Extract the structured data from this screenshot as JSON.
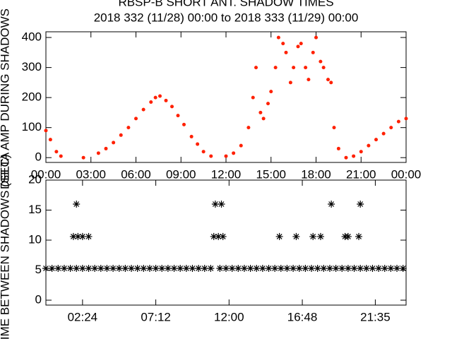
{
  "chart_data": [
    {
      "type": "scatter",
      "title": "RBSP-B SHORT ANT. SHADOW TIMES",
      "subtitle": "2018 332 (11/28) 00:00 to 2018 333 (11/29) 00:00",
      "y_label": "DELTA AMP DURING SHADOWS",
      "color": "#ff2000",
      "x": [
        0,
        0.3,
        0.7,
        1,
        2.5,
        3.5,
        4,
        4.5,
        5,
        5.5,
        6,
        6.5,
        7,
        7.3,
        7.6,
        8,
        8.4,
        8.8,
        9.2,
        9.7,
        10.1,
        10.5,
        11,
        12,
        12.5,
        13,
        13.5,
        13.8,
        14,
        14.3,
        14.5,
        14.8,
        15,
        15.3,
        15.5,
        15.8,
        16,
        16.3,
        16.5,
        16.8,
        17,
        17.3,
        17.5,
        17.8,
        18,
        18.3,
        18.5,
        18.8,
        19,
        19.2,
        19.5,
        20,
        20.5,
        21,
        21.5,
        22,
        22.5,
        23,
        23.5,
        24
      ],
      "values": [
        90,
        60,
        20,
        5,
        0,
        15,
        30,
        50,
        75,
        100,
        130,
        160,
        185,
        200,
        205,
        190,
        170,
        140,
        110,
        70,
        45,
        20,
        5,
        5,
        15,
        40,
        100,
        200,
        300,
        150,
        130,
        180,
        220,
        300,
        400,
        380,
        350,
        250,
        300,
        370,
        380,
        300,
        260,
        350,
        400,
        320,
        300,
        260,
        250,
        100,
        30,
        0,
        5,
        20,
        40,
        60,
        80,
        100,
        120,
        130
      ],
      "xlim": [
        0,
        24
      ],
      "ylim": [
        -16,
        419
      ],
      "xticks": [
        {
          "value": 0,
          "label": "00:00"
        },
        {
          "value": 3,
          "label": "03:00"
        },
        {
          "value": 6,
          "label": "06:00"
        },
        {
          "value": 9,
          "label": "09:00"
        },
        {
          "value": 12,
          "label": "12:00"
        },
        {
          "value": 15,
          "label": "15:00"
        },
        {
          "value": 18,
          "label": "18:00"
        },
        {
          "value": 21,
          "label": "21:00"
        },
        {
          "value": 24,
          "label": "00:00"
        }
      ],
      "yticks": [
        0,
        100,
        200,
        300,
        400
      ]
    },
    {
      "type": "asterisk",
      "y_label": "TIME BETWEEN SHADOWS (SEC)",
      "color": "#000000",
      "x": [
        0,
        0.4,
        0.8,
        1.2,
        1.6,
        2,
        2.4,
        2.8,
        3.2,
        3.6,
        4,
        4.4,
        4.8,
        5.2,
        5.6,
        6,
        6.4,
        6.8,
        7.2,
        7.6,
        8,
        8.4,
        8.8,
        9.2,
        9.6,
        10,
        10.4,
        10.8,
        11.4,
        11.8,
        12.2,
        12.6,
        13,
        13.4,
        13.8,
        14.2,
        14.6,
        15,
        15.4,
        15.8,
        16.2,
        16.6,
        17,
        17.4,
        17.8,
        18.2,
        18.6,
        19,
        19.4,
        19.8,
        20.2,
        20.6,
        21,
        21.4,
        21.8,
        22.2,
        22.6,
        23,
        23.4,
        1.8,
        2.1,
        2.4,
        2.8,
        11,
        11.3,
        11.6,
        15.3,
        16.4,
        17.5,
        18,
        19.6,
        19.8,
        20.5,
        2,
        11.1,
        11.5,
        18.7,
        20.6
      ],
      "values": [
        5.3,
        5.3,
        5.3,
        5.3,
        5.3,
        5.3,
        5.3,
        5.3,
        5.3,
        5.3,
        5.3,
        5.3,
        5.3,
        5.3,
        5.3,
        5.3,
        5.3,
        5.3,
        5.3,
        5.3,
        5.3,
        5.3,
        5.3,
        5.3,
        5.3,
        5.3,
        5.3,
        5.3,
        5.3,
        5.3,
        5.3,
        5.3,
        5.3,
        5.3,
        5.3,
        5.3,
        5.3,
        5.3,
        5.3,
        5.3,
        5.3,
        5.3,
        5.3,
        5.3,
        5.3,
        5.3,
        5.3,
        5.3,
        5.3,
        5.3,
        5.3,
        5.3,
        5.3,
        5.3,
        5.3,
        5.3,
        5.3,
        5.3,
        5.3,
        10.6,
        10.6,
        10.6,
        10.6,
        10.6,
        10.6,
        10.6,
        10.6,
        10.6,
        10.6,
        10.6,
        10.6,
        10.6,
        10.6,
        16,
        16,
        16,
        16,
        16
      ],
      "xlim": [
        0,
        23.6
      ],
      "ylim": [
        -0.82,
        20
      ],
      "xticks": [
        {
          "value": 2.4,
          "label": "02:24"
        },
        {
          "value": 7.2,
          "label": "07:12"
        },
        {
          "value": 12,
          "label": "12:00"
        },
        {
          "value": 16.8,
          "label": "16:48"
        },
        {
          "value": 21.583,
          "label": "21:35"
        }
      ],
      "yticks": [
        0,
        5,
        10,
        15,
        20
      ]
    }
  ]
}
